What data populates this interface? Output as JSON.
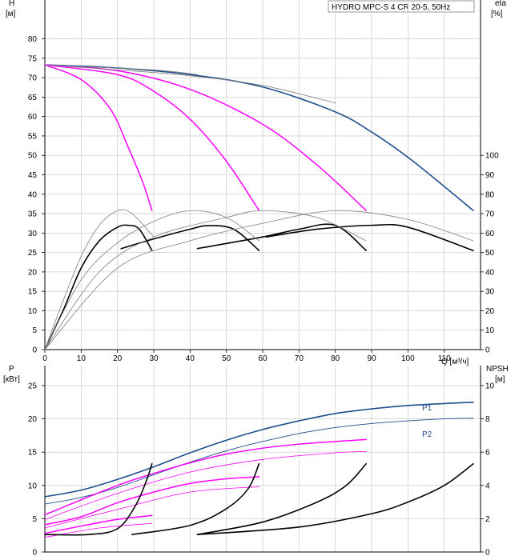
{
  "chart_data": [
    {
      "type": "line",
      "title": "HYDRO MPC-S 4 CR 20-5, 50Hz",
      "x": {
        "ticks": [
          "0",
          "10",
          "20",
          "30",
          "40",
          "50",
          "60",
          "70",
          "80",
          "90",
          "100",
          "110"
        ],
        "unit_label": "Q [м³/ч]",
        "range": [
          0,
          120
        ]
      },
      "y_left": {
        "label_line1": "H",
        "label_line2": "[м]",
        "ticks": [
          "0",
          "5",
          "10",
          "15",
          "20",
          "25",
          "30",
          "35",
          "40",
          "45",
          "50",
          "55",
          "60",
          "65",
          "70",
          "75",
          "80"
        ],
        "range": [
          0,
          90
        ]
      },
      "y_right": {
        "label_line1": "eta",
        "label_line2": "[%]",
        "ticks": [
          "0",
          "10",
          "20",
          "30",
          "40",
          "50",
          "60",
          "70",
          "80",
          "90",
          "100"
        ],
        "range": [
          0,
          180
        ]
      },
      "grid": true,
      "colors": {
        "main": "#1f4e8c",
        "magenta": "#ff00ff",
        "black": "#000000",
        "thin": "#808080"
      },
      "series": [
        {
          "kind": "H",
          "color": "main",
          "points": [
            [
              0,
              73.3
            ],
            [
              20,
              72.5
            ],
            [
              40,
              70.8
            ],
            [
              60,
              67.6
            ],
            [
              80,
              61.2
            ],
            [
              90,
              56.0
            ],
            [
              100,
              49.5
            ],
            [
              110,
              42.0
            ],
            [
              118,
              35.8
            ]
          ]
        },
        {
          "kind": "H",
          "color": "magenta",
          "points": [
            [
              0,
              73.3
            ],
            [
              10,
              69.5
            ],
            [
              18,
              62.0
            ],
            [
              23,
              52.0
            ],
            [
              27,
              43.0
            ],
            [
              29.5,
              35.8
            ]
          ]
        },
        {
          "kind": "H",
          "color": "magenta",
          "points": [
            [
              0,
              73.3
            ],
            [
              20,
              70.8
            ],
            [
              30,
              66.5
            ],
            [
              40,
              59.3
            ],
            [
              50,
              48.5
            ],
            [
              59,
              35.8
            ]
          ]
        },
        {
          "kind": "H",
          "color": "magenta",
          "points": [
            [
              0,
              73.3
            ],
            [
              20,
              71.8
            ],
            [
              40,
              67.0
            ],
            [
              60,
              58.0
            ],
            [
              75,
              47.5
            ],
            [
              88.5,
              35.8
            ]
          ]
        },
        {
          "kind": "H",
          "color": "thin",
          "points": [
            [
              0,
              73.3
            ],
            [
              20,
              72.0
            ],
            [
              40,
              70.5
            ],
            [
              60,
              68.0
            ],
            [
              80,
              63.5
            ]
          ]
        },
        {
          "kind": "H",
          "color": "thin",
          "points": [
            [
              0,
              73.3
            ],
            [
              30,
              72.0
            ],
            [
              42,
              70.8
            ]
          ]
        },
        {
          "kind": "eta",
          "color": "black",
          "points": [
            [
              0,
              0
            ],
            [
              5,
              20
            ],
            [
              10,
              42
            ],
            [
              15,
              56
            ],
            [
              20,
              63
            ],
            [
              23,
              64
            ],
            [
              26,
              62
            ],
            [
              29.5,
              51
            ]
          ]
        },
        {
          "kind": "eta",
          "color": "black",
          "points": [
            [
              21,
              52
            ],
            [
              30,
              57
            ],
            [
              40,
              62
            ],
            [
              45,
              63.8
            ],
            [
              52,
              62
            ],
            [
              59,
              51
            ]
          ]
        },
        {
          "kind": "eta",
          "color": "black",
          "points": [
            [
              42,
              52
            ],
            [
              60,
              58
            ],
            [
              70,
              62
            ],
            [
              80,
              64
            ],
            [
              88.5,
              51
            ]
          ]
        },
        {
          "kind": "eta",
          "color": "black",
          "points": [
            [
              61,
              58
            ],
            [
              75,
              62
            ],
            [
              90,
              64
            ],
            [
              100,
              63
            ],
            [
              118,
              51
            ]
          ]
        },
        {
          "kind": "eta",
          "color": "thin",
          "points": [
            [
              0,
              0
            ],
            [
              5,
              25
            ],
            [
              10,
              48
            ],
            [
              15,
              64
            ],
            [
              20,
              71.5
            ],
            [
              24,
              70
            ],
            [
              30,
              58
            ]
          ]
        },
        {
          "kind": "eta",
          "color": "thin",
          "points": [
            [
              0,
              0
            ],
            [
              10,
              36
            ],
            [
              20,
              55
            ],
            [
              30,
              66
            ],
            [
              40,
              71.5
            ],
            [
              50,
              68
            ],
            [
              59,
              56
            ]
          ]
        },
        {
          "kind": "eta",
          "color": "thin",
          "points": [
            [
              0,
              0
            ],
            [
              15,
              40
            ],
            [
              30,
              58
            ],
            [
              50,
              68
            ],
            [
              60,
              71.5
            ],
            [
              75,
              68
            ],
            [
              88.5,
              56
            ]
          ]
        },
        {
          "kind": "eta",
          "color": "thin",
          "points": [
            [
              0,
              0
            ],
            [
              20,
              42
            ],
            [
              40,
              56
            ],
            [
              60,
              65
            ],
            [
              80,
              71.5
            ],
            [
              100,
              67
            ],
            [
              118,
              56
            ]
          ]
        }
      ]
    },
    {
      "type": "line",
      "x": {
        "range": [
          0,
          120
        ]
      },
      "y_left": {
        "label_line1": "P",
        "label_line2": "[кВт]",
        "ticks": [
          "0",
          "5",
          "10",
          "15",
          "20",
          "25"
        ],
        "range": [
          0,
          28
        ]
      },
      "y_right": {
        "label_line1": "NPSH",
        "label_line2": "[м]",
        "ticks": [
          "0",
          "2",
          "4",
          "6",
          "8",
          "10"
        ],
        "range": [
          0,
          11.2
        ]
      },
      "grid": true,
      "series_labels": [
        "P1",
        "P2"
      ],
      "series": [
        {
          "name": "P1",
          "color": "main",
          "points": [
            [
              0,
              8.3
            ],
            [
              10,
              9.3
            ],
            [
              20,
              10.9
            ],
            [
              30,
              12.8
            ],
            [
              40,
              14.9
            ],
            [
              50,
              16.8
            ],
            [
              60,
              18.4
            ],
            [
              70,
              19.7
            ],
            [
              80,
              20.8
            ],
            [
              90,
              21.5
            ],
            [
              100,
              22.0
            ],
            [
              110,
              22.3
            ],
            [
              118,
              22.5
            ]
          ]
        },
        {
          "name": "P2",
          "color": "main_thin",
          "points": [
            [
              0,
              7.2
            ],
            [
              10,
              8.2
            ],
            [
              20,
              9.7
            ],
            [
              30,
              11.6
            ],
            [
              40,
              13.5
            ],
            [
              50,
              15.2
            ],
            [
              60,
              16.6
            ],
            [
              70,
              17.8
            ],
            [
              80,
              18.7
            ],
            [
              90,
              19.3
            ],
            [
              100,
              19.7
            ],
            [
              110,
              20.0
            ],
            [
              118,
              20.1
            ]
          ]
        },
        {
          "kind": "P",
          "color": "magenta",
          "points": [
            [
              0,
              5.6
            ],
            [
              20,
              10.0
            ],
            [
              30,
              11.8
            ],
            [
              40,
              13.4
            ],
            [
              50,
              14.7
            ],
            [
              60,
              15.6
            ],
            [
              70,
              16.2
            ],
            [
              80,
              16.6
            ],
            [
              88.5,
              16.9
            ]
          ]
        },
        {
          "kind": "P",
          "color": "magenta_thin",
          "points": [
            [
              0,
              4.9
            ],
            [
              20,
              8.8
            ],
            [
              40,
              12.0
            ],
            [
              60,
              13.9
            ],
            [
              80,
              14.9
            ],
            [
              88.5,
              15.1
            ]
          ]
        },
        {
          "kind": "P",
          "color": "magenta",
          "points": [
            [
              0,
              4.1
            ],
            [
              10,
              5.3
            ],
            [
              20,
              7.4
            ],
            [
              30,
              9.0
            ],
            [
              40,
              10.3
            ],
            [
              50,
              11.0
            ],
            [
              59,
              11.3
            ]
          ]
        },
        {
          "kind": "P",
          "color": "magenta_thin",
          "points": [
            [
              0,
              3.6
            ],
            [
              20,
              6.4
            ],
            [
              40,
              9.0
            ],
            [
              59,
              9.8
            ]
          ]
        },
        {
          "kind": "P",
          "color": "magenta",
          "points": [
            [
              0,
              2.8
            ],
            [
              10,
              3.9
            ],
            [
              20,
              4.9
            ],
            [
              29.5,
              5.5
            ]
          ]
        },
        {
          "kind": "P",
          "color": "magenta_thin",
          "points": [
            [
              0,
              2.2
            ],
            [
              15,
              3.6
            ],
            [
              29.5,
              4.3
            ]
          ]
        },
        {
          "kind": "NPSH",
          "color": "black",
          "points": [
            [
              0,
              1.05
            ],
            [
              12,
              1.05
            ],
            [
              20,
              1.4
            ],
            [
              25,
              2.8
            ],
            [
              28,
              4.3
            ],
            [
              29.5,
              5.3
            ]
          ]
        },
        {
          "kind": "NPSH",
          "color": "black",
          "points": [
            [
              24,
              1.05
            ],
            [
              40,
              1.6
            ],
            [
              50,
              2.6
            ],
            [
              56,
              3.8
            ],
            [
              59,
              5.3
            ]
          ]
        },
        {
          "kind": "NPSH",
          "color": "black",
          "points": [
            [
              42,
              1.05
            ],
            [
              60,
              1.8
            ],
            [
              75,
              3.0
            ],
            [
              83,
              4.0
            ],
            [
              88.5,
              5.3
            ]
          ]
        },
        {
          "kind": "NPSH",
          "color": "black",
          "points": [
            [
              42,
              1.05
            ],
            [
              70,
              1.5
            ],
            [
              90,
              2.3
            ],
            [
              100,
              3.0
            ],
            [
              110,
              4.0
            ],
            [
              118,
              5.3
            ]
          ]
        }
      ]
    }
  ]
}
